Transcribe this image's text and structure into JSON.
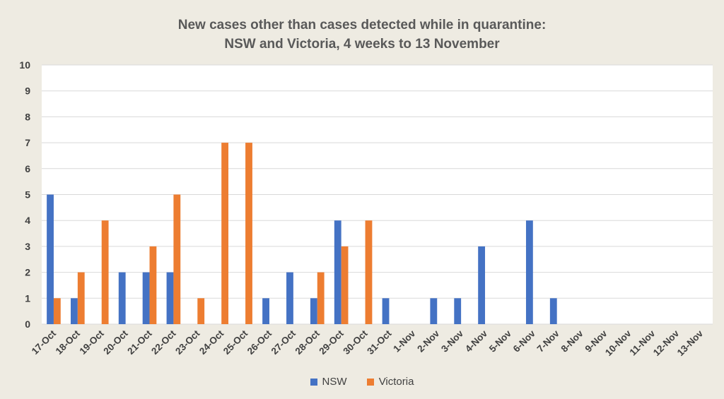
{
  "chart_data": {
    "type": "bar",
    "title_line1": "New cases other than cases detected while in quarantine:",
    "title_line2": "NSW and Victoria, 4 weeks to 13 November",
    "categories": [
      "17-Oct",
      "18-Oct",
      "19-Oct",
      "20-Oct",
      "21-Oct",
      "22-Oct",
      "23-Oct",
      "24-Oct",
      "25-Oct",
      "26-Oct",
      "27-Oct",
      "28-Oct",
      "29-Oct",
      "30-Oct",
      "31-Oct",
      "1-Nov",
      "2-Nov",
      "3-Nov",
      "4-Nov",
      "5-Nov",
      "6-Nov",
      "7-Nov",
      "8-Nov",
      "9-Nov",
      "10-Nov",
      "11-Nov",
      "12-Nov",
      "13-Nov"
    ],
    "series": [
      {
        "name": "NSW",
        "color": "#4472c4",
        "values": [
          5,
          1,
          0,
          2,
          2,
          2,
          0,
          0,
          0,
          1,
          2,
          1,
          4,
          0,
          1,
          0,
          1,
          1,
          3,
          0,
          4,
          1,
          0,
          0,
          0,
          0,
          0,
          0
        ]
      },
      {
        "name": "Victoria",
        "color": "#ed7d31",
        "values": [
          1,
          2,
          4,
          0,
          3,
          5,
          1,
          7,
          7,
          0,
          0,
          2,
          3,
          4,
          0,
          0,
          0,
          0,
          0,
          0,
          0,
          0,
          0,
          0,
          0,
          0,
          0,
          0
        ]
      }
    ],
    "ylim": [
      0,
      10
    ],
    "yticks": [
      "0",
      "1",
      "2",
      "3",
      "4",
      "5",
      "6",
      "7",
      "8",
      "9",
      "10"
    ],
    "grid": true,
    "legend_position": "bottom"
  }
}
